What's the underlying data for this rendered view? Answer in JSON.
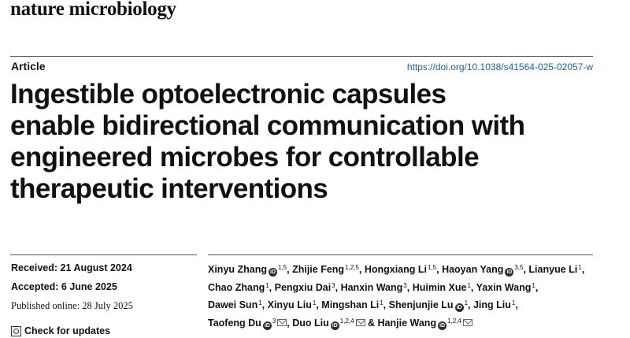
{
  "journal": "nature microbiology",
  "article_type": "Article",
  "doi": "https://doi.org/10.1038/s41564-025-02057-w",
  "title_lines": [
    "Ingestible optoelectronic capsules",
    "enable bidirectional communication with",
    "engineered microbes for controllable",
    "therapeutic interventions"
  ],
  "dates": {
    "received": "Received: 21 August 2024",
    "accepted": "Accepted: 6 June 2025",
    "published": "Published online: 28 July 2025"
  },
  "check_updates": "Check for updates",
  "authors": [
    {
      "name": "Xinyu Zhang",
      "sup": "1,5",
      "orcid": true,
      "email": false
    },
    {
      "name": "Zhijie Feng",
      "sup": "1,2,5",
      "orcid": false,
      "email": false
    },
    {
      "name": "Hongxiang Li",
      "sup": "1,5",
      "orcid": false,
      "email": false
    },
    {
      "name": "Haoyan Yang",
      "sup": "3,5",
      "orcid": true,
      "email": false
    },
    {
      "name": "Lianyue Li",
      "sup": "1",
      "orcid": false,
      "email": false
    },
    {
      "name": "Chao Zhang",
      "sup": "1",
      "orcid": false,
      "email": false
    },
    {
      "name": "Pengxiu Dai",
      "sup": "3",
      "orcid": false,
      "email": false
    },
    {
      "name": "Hanxin Wang",
      "sup": "3",
      "orcid": false,
      "email": false
    },
    {
      "name": "Huimin Xue",
      "sup": "1",
      "orcid": false,
      "email": false
    },
    {
      "name": "Yaxin Wang",
      "sup": "1",
      "orcid": false,
      "email": false
    },
    {
      "name": "Dawei Sun",
      "sup": "1",
      "orcid": false,
      "email": false
    },
    {
      "name": "Xinyu Liu",
      "sup": "1",
      "orcid": false,
      "email": false
    },
    {
      "name": "Mingshan Li",
      "sup": "1",
      "orcid": false,
      "email": false
    },
    {
      "name": "Shenjunjie Lu",
      "sup": "1",
      "orcid": true,
      "email": false
    },
    {
      "name": "Jing Liu",
      "sup": "1",
      "orcid": false,
      "email": false
    },
    {
      "name": "Taofeng Du",
      "sup": "3",
      "orcid": true,
      "email": true
    },
    {
      "name": "Duo Liu",
      "sup": "1,2,4",
      "orcid": true,
      "email": true
    },
    {
      "name": "Hanjie Wang",
      "sup": "1,2,4",
      "orcid": true,
      "email": true
    }
  ]
}
